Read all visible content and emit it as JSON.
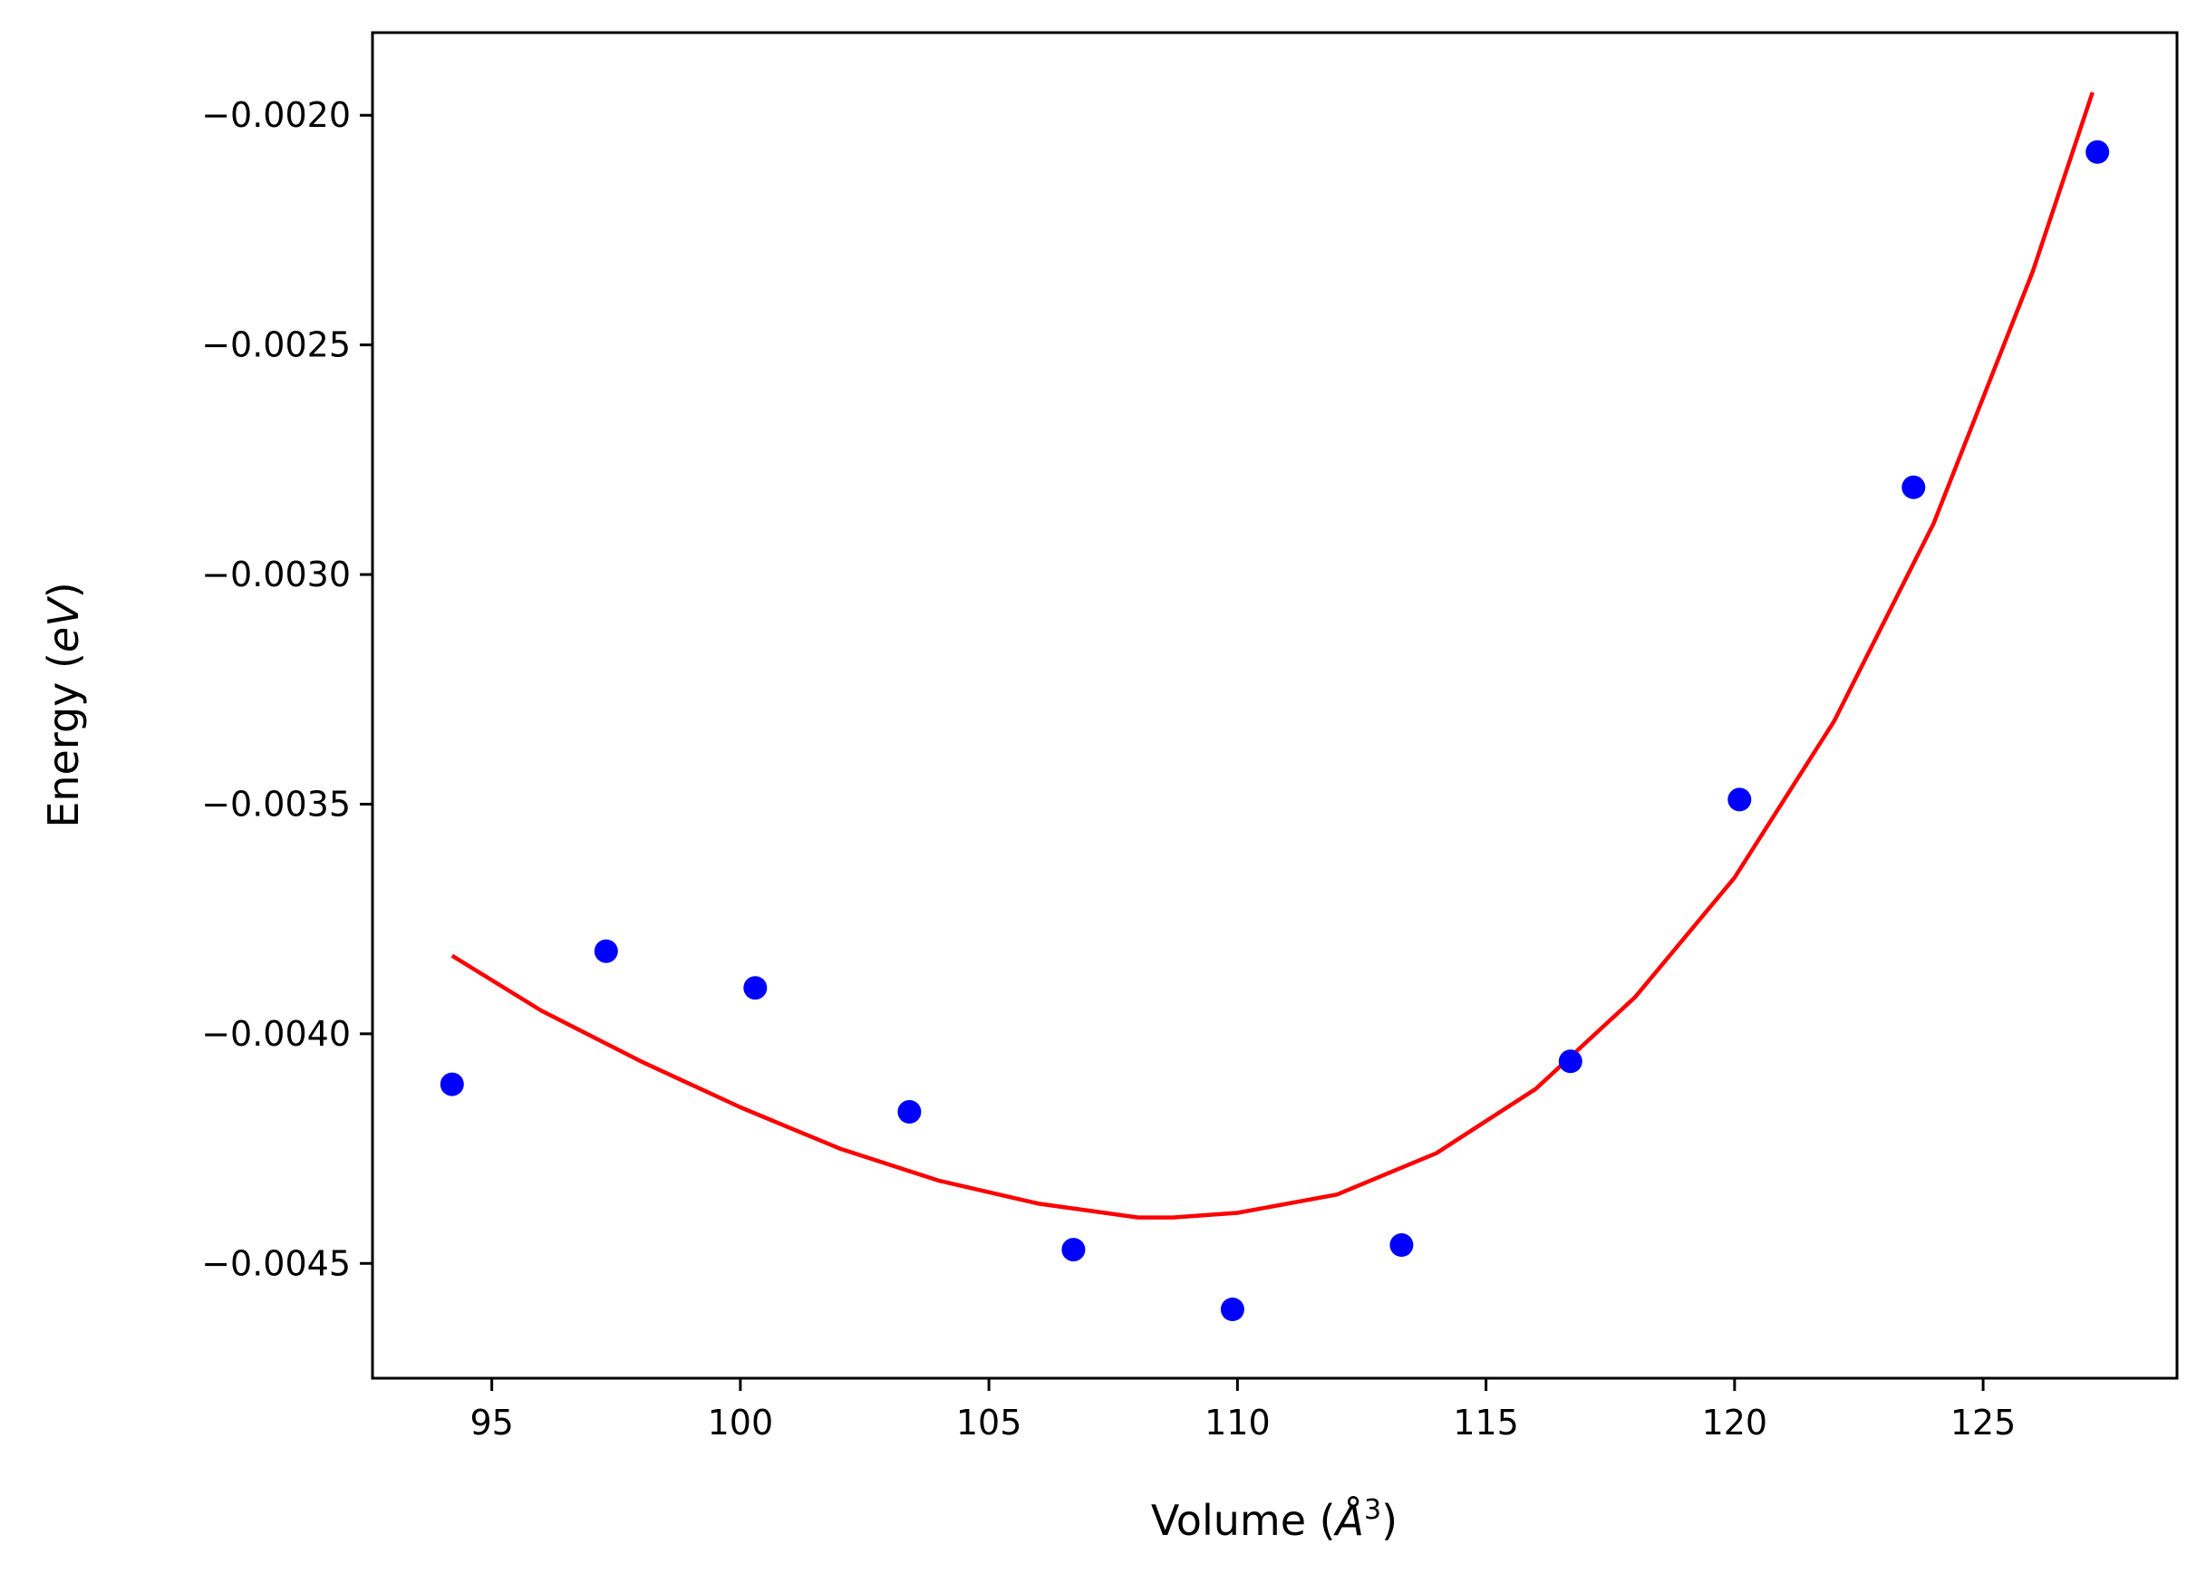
{
  "chart_data": {
    "type": "scatter",
    "xlabel": "Volume",
    "xlabel_unit_base": "Å",
    "xlabel_unit_sup": "3",
    "ylabel": "Energy",
    "ylabel_unit": "eV",
    "xlim": [
      92.6,
      128.9
    ],
    "ylim": [
      -0.00475,
      -0.00182
    ],
    "x_ticks": [
      95,
      100,
      105,
      110,
      115,
      120,
      125
    ],
    "y_ticks": [
      -0.002,
      -0.0025,
      -0.003,
      -0.0035,
      -0.004,
      -0.0045
    ],
    "x_tick_labels": [
      "95",
      "100",
      "105",
      "110",
      "115",
      "120",
      "125"
    ],
    "y_tick_labels": [
      "−0.0020",
      "−0.0025",
      "−0.0030",
      "−0.0035",
      "−0.0040",
      "−0.0045"
    ],
    "grid": false,
    "series": [
      {
        "kind": "points",
        "color": "#0000ff",
        "x": [
          94.2,
          97.3,
          100.3,
          103.4,
          106.7,
          109.9,
          113.3,
          116.7,
          120.1,
          123.6,
          127.3
        ],
        "y": [
          -0.00411,
          -0.00382,
          -0.0039,
          -0.00417,
          -0.00447,
          -0.0046,
          -0.00446,
          -0.00406,
          -0.00349,
          -0.00281,
          -0.00208
        ]
      },
      {
        "kind": "fit-curve",
        "color": "#ff0000",
        "x": [
          94.2,
          96,
          98,
          100,
          102,
          104,
          106,
          108,
          108.7,
          110,
          112,
          114,
          116,
          118,
          120,
          122,
          124,
          126,
          127.2
        ],
        "y": [
          -0.00383,
          -0.00395,
          -0.00406,
          -0.00416,
          -0.00425,
          -0.00432,
          -0.00437,
          -0.0044,
          -0.0044,
          -0.00439,
          -0.00435,
          -0.00426,
          -0.00412,
          -0.00392,
          -0.00366,
          -0.00332,
          -0.00289,
          -0.00234,
          -0.00195
        ]
      }
    ]
  }
}
